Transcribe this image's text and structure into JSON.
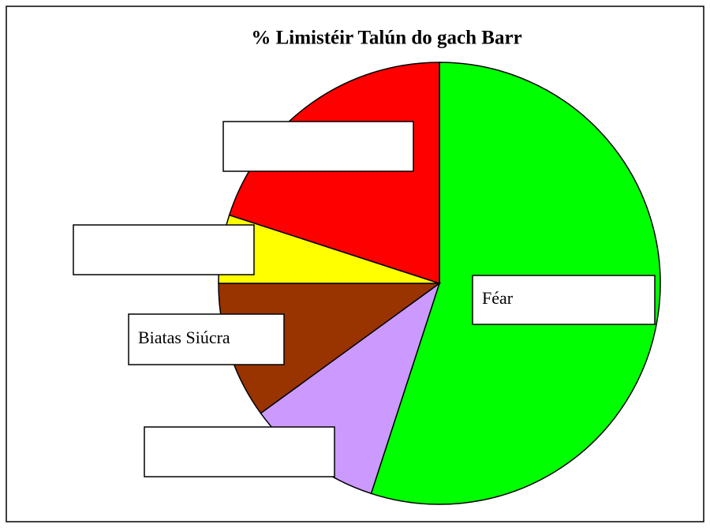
{
  "chart_data": {
    "type": "pie",
    "title": "% Limistéir Talún do gach Barr",
    "categories": [
      "Féar",
      null,
      "Biatas Siúcra",
      null,
      null
    ],
    "values": [
      55,
      10,
      10,
      5,
      20
    ],
    "colors": [
      "#00ff00",
      "#cc99ff",
      "#993300",
      "#ffff00",
      "#ff0000"
    ]
  }
}
